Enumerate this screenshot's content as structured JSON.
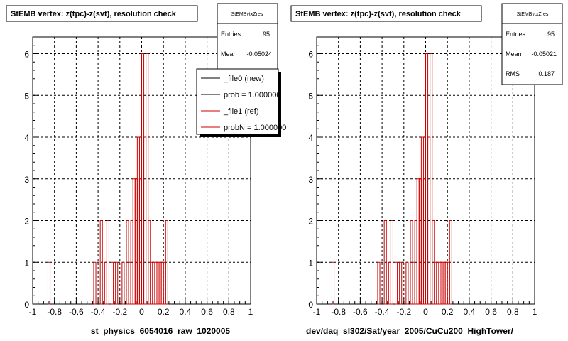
{
  "colors": {
    "new": "#000000",
    "ref": "#cc0000",
    "grid": "#000000",
    "frame": "#000000"
  },
  "footer_text": "",
  "chart_data": [
    {
      "type": "bar",
      "title": "StEMB  vertex: z(tpc)-z(svt), resolution check",
      "xlabel": "st_physics_6054016_raw_1020005",
      "ylabel": "",
      "xlim": [
        -1,
        1
      ],
      "ylim": [
        0,
        6.4
      ],
      "x_ticks": [
        "-1",
        "-0.8",
        "-0.6",
        "-0.4",
        "-0.2",
        "0",
        "0.2",
        "0.4",
        "0.6",
        "0.8",
        "1"
      ],
      "x_tick_values": [
        -1,
        -0.8,
        -0.6,
        -0.4,
        -0.2,
        0,
        0.2,
        0.4,
        0.6,
        0.8,
        1
      ],
      "y_ticks": [
        "0",
        "1",
        "2",
        "3",
        "4",
        "5",
        "6"
      ],
      "y_tick_values": [
        0,
        1,
        2,
        3,
        4,
        5,
        6
      ],
      "grid": true,
      "stats": {
        "name": "StEMBvtxZres",
        "rows": [
          {
            "label": "Entries",
            "value": "95"
          },
          {
            "label": "Mean",
            "value": "-0.05024"
          }
        ]
      },
      "legend": {
        "placement": "top-right",
        "entries": [
          {
            "label": "_file0 (new)",
            "color": "#000000"
          },
          {
            "label": "prob = 1.000000",
            "color": "#000000"
          },
          {
            "label": "_file1 (ref)",
            "color": "#cc0000"
          },
          {
            "label": "probN = 1.000000",
            "color": "#cc0000"
          }
        ]
      },
      "bin_width": 0.02,
      "bins": [
        {
          "x": -0.86,
          "y": 1
        },
        {
          "x": -0.44,
          "y": 1
        },
        {
          "x": -0.38,
          "y": 2
        },
        {
          "x": -0.34,
          "y": 1
        },
        {
          "x": -0.32,
          "y": 2
        },
        {
          "x": -0.28,
          "y": 1
        },
        {
          "x": -0.24,
          "y": 1
        },
        {
          "x": -0.18,
          "y": 1
        },
        {
          "x": -0.14,
          "y": 2
        },
        {
          "x": -0.12,
          "y": 1
        },
        {
          "x": -0.1,
          "y": 2
        },
        {
          "x": -0.08,
          "y": 3
        },
        {
          "x": -0.06,
          "y": 3
        },
        {
          "x": -0.04,
          "y": 4
        },
        {
          "x": -0.02,
          "y": 3
        },
        {
          "x": 0.0,
          "y": 6
        },
        {
          "x": 0.02,
          "y": 4
        },
        {
          "x": 0.04,
          "y": 6
        },
        {
          "x": 0.06,
          "y": 2
        },
        {
          "x": 0.08,
          "y": 1
        },
        {
          "x": 0.1,
          "y": 1
        },
        {
          "x": 0.12,
          "y": 1
        },
        {
          "x": 0.14,
          "y": 1
        },
        {
          "x": 0.16,
          "y": 1
        },
        {
          "x": 0.18,
          "y": 1
        },
        {
          "x": 0.2,
          "y": 1
        },
        {
          "x": 0.22,
          "y": 2
        }
      ]
    },
    {
      "type": "bar",
      "title": "StEMB  vertex: z(tpc)-z(svt), resolution check",
      "xlabel": "dev/daq_sl302/Sat/year_2005/CuCu200_HighTower/",
      "ylabel": "",
      "xlim": [
        -1,
        1
      ],
      "ylim": [
        0,
        6.4
      ],
      "x_ticks": [
        "-1",
        "-0.8",
        "-0.6",
        "-0.4",
        "-0.2",
        "0",
        "0.2",
        "0.4",
        "0.6",
        "0.8",
        "1"
      ],
      "x_tick_values": [
        -1,
        -0.8,
        -0.6,
        -0.4,
        -0.2,
        0,
        0.2,
        0.4,
        0.6,
        0.8,
        1
      ],
      "y_ticks": [
        "0",
        "1",
        "2",
        "3",
        "4",
        "5",
        "6"
      ],
      "y_tick_values": [
        0,
        1,
        2,
        3,
        4,
        5,
        6
      ],
      "grid": true,
      "stats": {
        "name": "StEMBvtxZres",
        "rows": [
          {
            "label": "Entries",
            "value": "95"
          },
          {
            "label": "Mean",
            "value": "-0.05021"
          },
          {
            "label": "RMS",
            "value": "0.187"
          }
        ]
      },
      "bin_width": 0.02,
      "bins": [
        {
          "x": -0.86,
          "y": 1
        },
        {
          "x": -0.44,
          "y": 1
        },
        {
          "x": -0.38,
          "y": 2
        },
        {
          "x": -0.34,
          "y": 1
        },
        {
          "x": -0.32,
          "y": 2
        },
        {
          "x": -0.28,
          "y": 1
        },
        {
          "x": -0.24,
          "y": 1
        },
        {
          "x": -0.18,
          "y": 1
        },
        {
          "x": -0.14,
          "y": 2
        },
        {
          "x": -0.12,
          "y": 1
        },
        {
          "x": -0.1,
          "y": 2
        },
        {
          "x": -0.08,
          "y": 3
        },
        {
          "x": -0.06,
          "y": 3
        },
        {
          "x": -0.04,
          "y": 4
        },
        {
          "x": -0.02,
          "y": 3
        },
        {
          "x": 0.0,
          "y": 6
        },
        {
          "x": 0.02,
          "y": 4
        },
        {
          "x": 0.04,
          "y": 6
        },
        {
          "x": 0.06,
          "y": 2
        },
        {
          "x": 0.08,
          "y": 1
        },
        {
          "x": 0.1,
          "y": 1
        },
        {
          "x": 0.12,
          "y": 1
        },
        {
          "x": 0.14,
          "y": 1
        },
        {
          "x": 0.16,
          "y": 1
        },
        {
          "x": 0.18,
          "y": 1
        },
        {
          "x": 0.2,
          "y": 1
        },
        {
          "x": 0.22,
          "y": 2
        }
      ]
    }
  ]
}
